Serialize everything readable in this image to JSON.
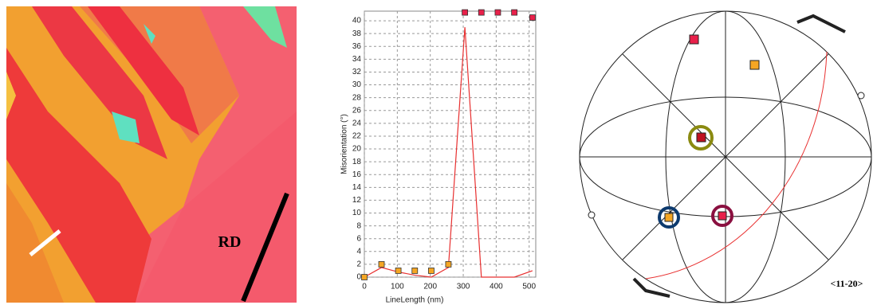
{
  "map_label": "RD",
  "pole_figure_label": "<11-20>",
  "chart_data": {
    "type": "line",
    "x_label": "LineLength (nm)",
    "y_label": "Misorientation (°)",
    "x": [
      0,
      52,
      103,
      153,
      203,
      255,
      305,
      355,
      405,
      455,
      510
    ],
    "series": [
      {
        "color": "#e83030",
        "marker": false,
        "values": [
          0,
          1.5,
          0.8,
          0.3,
          0,
          1.5,
          39,
          0,
          0,
          0,
          1
        ]
      },
      {
        "color": "#f5a623",
        "marker": true,
        "line": false,
        "values": [
          0,
          2,
          1,
          1,
          1,
          2,
          null,
          null,
          null,
          null,
          null
        ]
      },
      {
        "color": "#e8204a",
        "marker": true,
        "line": false,
        "values": [
          null,
          null,
          null,
          null,
          null,
          null,
          41.3,
          41.3,
          41.3,
          41.3,
          40.5
        ]
      }
    ],
    "xlim": [
      0,
      520
    ],
    "ylim": [
      0,
      41.5
    ],
    "xticks": [
      0,
      100,
      200,
      300,
      400,
      500
    ],
    "yticks": [
      0,
      2,
      4,
      6,
      8,
      10,
      12,
      14,
      16,
      18,
      20,
      22,
      24,
      26,
      28,
      30,
      32,
      34,
      36,
      38,
      40
    ],
    "grid": true
  }
}
